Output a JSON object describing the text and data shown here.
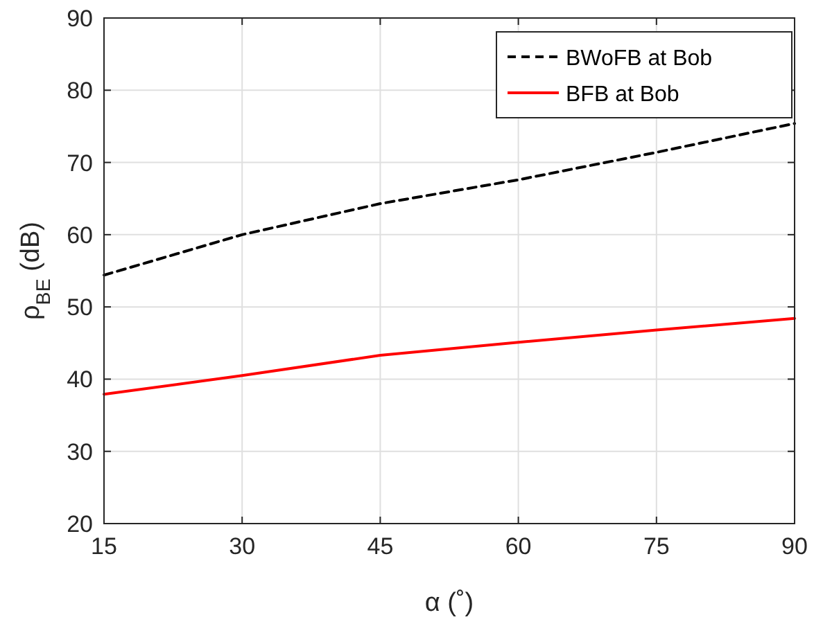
{
  "chart_data": {
    "type": "line",
    "xlabel": "α (˚)",
    "ylabel": "ρ$_{BE}$ (dB)",
    "x": [
      15,
      30,
      45,
      60,
      75,
      90
    ],
    "series": [
      {
        "name": "BWoFB at Bob",
        "color": "#000000",
        "line_style": "dashed",
        "values": [
          54.4,
          60.0,
          64.3,
          67.6,
          71.4,
          75.4
        ]
      },
      {
        "name": "BFB at Bob",
        "color": "#ff0000",
        "line_style": "solid",
        "values": [
          37.9,
          40.5,
          43.3,
          45.1,
          46.8,
          48.4
        ]
      }
    ],
    "xlim": [
      15,
      90
    ],
    "xticks": [
      15,
      30,
      45,
      60,
      75,
      90
    ],
    "ylim": [
      20,
      90
    ],
    "yticks": [
      20,
      30,
      40,
      50,
      60,
      70,
      80,
      90
    ],
    "grid": true,
    "legend": "top right",
    "marker": "none"
  }
}
